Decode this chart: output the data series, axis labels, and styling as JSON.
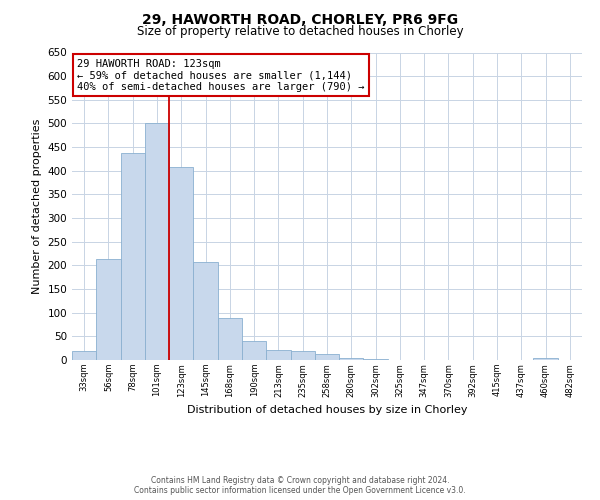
{
  "title": "29, HAWORTH ROAD, CHORLEY, PR6 9FG",
  "subtitle": "Size of property relative to detached houses in Chorley",
  "xlabel": "Distribution of detached houses by size in Chorley",
  "ylabel": "Number of detached properties",
  "bar_values": [
    18,
    213,
    437,
    502,
    408,
    207,
    88,
    40,
    22,
    18,
    12,
    5,
    3,
    0,
    0,
    0,
    0,
    0,
    0,
    5,
    0
  ],
  "bar_labels": [
    "33sqm",
    "56sqm",
    "78sqm",
    "101sqm",
    "123sqm",
    "145sqm",
    "168sqm",
    "190sqm",
    "213sqm",
    "235sqm",
    "258sqm",
    "280sqm",
    "302sqm",
    "325sqm",
    "347sqm",
    "370sqm",
    "392sqm",
    "415sqm",
    "437sqm",
    "460sqm",
    "482sqm"
  ],
  "bar_color": "#c8d8ec",
  "bar_edge_color": "#8ab0d0",
  "marker_line_color": "#cc0000",
  "annotation_line1": "29 HAWORTH ROAD: 123sqm",
  "annotation_line2": "← 59% of detached houses are smaller (1,144)",
  "annotation_line3": "40% of semi-detached houses are larger (790) →",
  "annotation_box_color": "#ffffff",
  "annotation_box_edge_color": "#cc0000",
  "ylim": [
    0,
    650
  ],
  "yticks": [
    0,
    50,
    100,
    150,
    200,
    250,
    300,
    350,
    400,
    450,
    500,
    550,
    600,
    650
  ],
  "footer1": "Contains HM Land Registry data © Crown copyright and database right 2024.",
  "footer2": "Contains public sector information licensed under the Open Government Licence v3.0.",
  "background_color": "#ffffff",
  "grid_color": "#c8d4e4"
}
